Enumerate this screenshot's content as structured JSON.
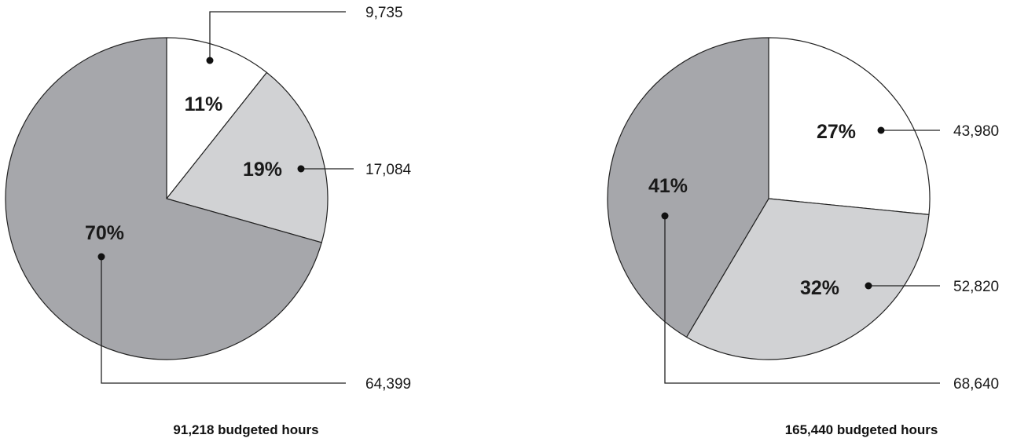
{
  "chart_data": [
    {
      "type": "pie",
      "title": "91,218 budgeted hours",
      "slices": [
        {
          "value": 9735,
          "value_label": "9,735",
          "percent_label": "11%",
          "color": "#ffffff"
        },
        {
          "value": 17084,
          "value_label": "17,084",
          "percent_label": "19%",
          "color": "#d1d2d4"
        },
        {
          "value": 64399,
          "value_label": "64,399",
          "percent_label": "70%",
          "color": "#a6a7ab"
        }
      ]
    },
    {
      "type": "pie",
      "title": "165,440 budgeted hours",
      "slices": [
        {
          "value": 43980,
          "value_label": "43,980",
          "percent_label": "27%",
          "color": "#ffffff"
        },
        {
          "value": 52820,
          "value_label": "52,820",
          "percent_label": "32%",
          "color": "#d1d2d4"
        },
        {
          "value": 68640,
          "value_label": "68,640",
          "percent_label": "41%",
          "color": "#a6a7ab"
        }
      ]
    }
  ]
}
